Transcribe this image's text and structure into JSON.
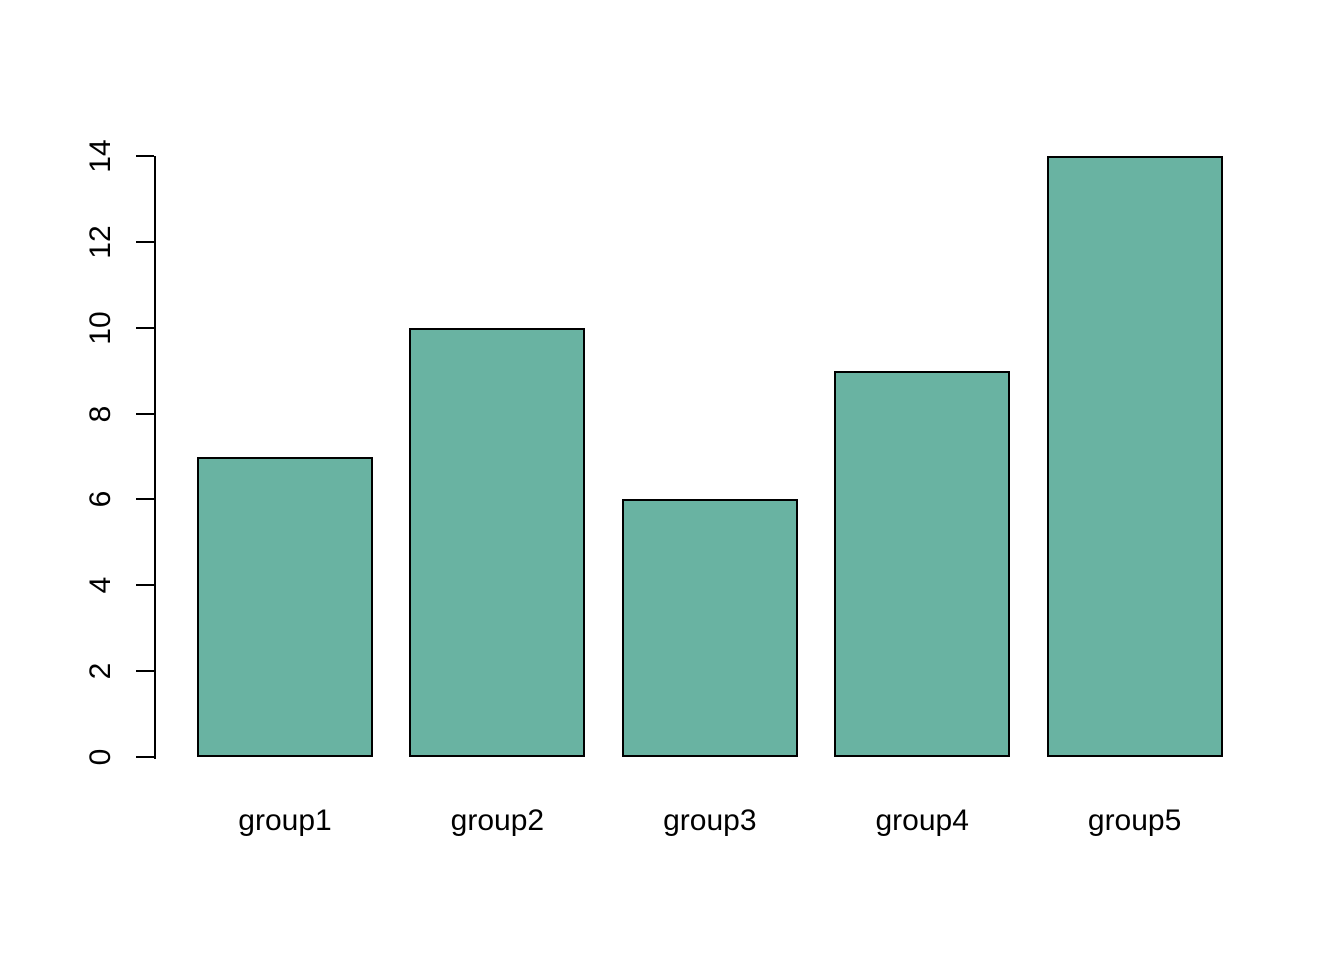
{
  "chart_data": {
    "type": "bar",
    "categories": [
      "group1",
      "group2",
      "group3",
      "group4",
      "group5"
    ],
    "values": [
      7,
      10,
      6,
      9,
      14
    ],
    "title": "",
    "xlabel": "",
    "ylabel": "",
    "ylim": [
      0,
      14
    ],
    "yticks": [
      0,
      2,
      4,
      6,
      8,
      10,
      12,
      14
    ],
    "grid": false,
    "legend": "none",
    "bar_fill_color": "#69b3a2",
    "bar_border_color": "#000000",
    "axis_color": "#000000",
    "background_color": "#ffffff"
  }
}
